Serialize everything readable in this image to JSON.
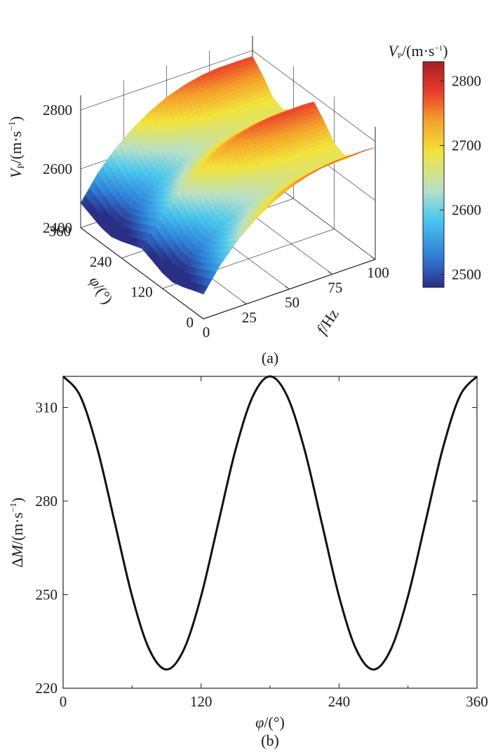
{
  "figure": {
    "panel_a_label": "(a)",
    "panel_b_label": "(b)"
  },
  "chart_data": [
    {
      "type": "surface",
      "panel": "(a)",
      "x_axis": {
        "label": "f/Hz",
        "ticks": [
          0,
          25,
          50,
          75,
          100
        ],
        "range": [
          0,
          100
        ]
      },
      "y_axis": {
        "label": "φ/(°)",
        "ticks": [
          0,
          120,
          240,
          360
        ],
        "range": [
          0,
          360
        ]
      },
      "z_axis": {
        "label": "VP/(m·s−1)",
        "ticks": [
          2400,
          2600,
          2800
        ],
        "range": [
          2400,
          2850
        ]
      },
      "colorbar": {
        "label": "VP/(m·s−1)",
        "ticks": [
          2500,
          2600,
          2700,
          2800
        ],
        "range": [
          2480,
          2830
        ],
        "colors": [
          "#2a2f86",
          "#2f7fd8",
          "#49c6ee",
          "#b7e0c9",
          "#f2e43a",
          "#f5a02a",
          "#e83a2a",
          "#a61f24"
        ]
      },
      "surface_grid": {
        "f": [
          0,
          10,
          20,
          30,
          40,
          50,
          60,
          70,
          80,
          90,
          100
        ],
        "phi": [
          0,
          30,
          60,
          90,
          120,
          150,
          180,
          210,
          240,
          270,
          300,
          330,
          360
        ],
        "vp": [
          [
            2484,
            2565,
            2627,
            2675,
            2713,
            2742,
            2762,
            2775,
            2781,
            2781,
            2780
          ],
          [
            2471,
            2542,
            2597,
            2640,
            2675,
            2702,
            2722,
            2735,
            2742,
            2744,
            2745
          ],
          [
            2457,
            2520,
            2569,
            2607,
            2637,
            2661,
            2678,
            2690,
            2697,
            2700,
            2702
          ],
          [
            2447,
            2505,
            2551,
            2587,
            2615,
            2637,
            2653,
            2664,
            2671,
            2674,
            2676
          ],
          [
            2453,
            2513,
            2561,
            2599,
            2628,
            2651,
            2668,
            2679,
            2686,
            2689,
            2691
          ],
          [
            2469,
            2539,
            2594,
            2637,
            2671,
            2698,
            2717,
            2730,
            2737,
            2740,
            2740
          ],
          [
            2484,
            2565,
            2627,
            2675,
            2713,
            2742,
            2762,
            2775,
            2781,
            2781,
            2780
          ],
          [
            2471,
            2542,
            2597,
            2640,
            2675,
            2702,
            2722,
            2735,
            2742,
            2744,
            2745
          ],
          [
            2457,
            2520,
            2569,
            2607,
            2637,
            2661,
            2678,
            2690,
            2697,
            2700,
            2702
          ],
          [
            2447,
            2505,
            2551,
            2587,
            2615,
            2637,
            2653,
            2664,
            2671,
            2674,
            2676
          ],
          [
            2453,
            2513,
            2561,
            2599,
            2628,
            2651,
            2668,
            2679,
            2686,
            2689,
            2691
          ],
          [
            2469,
            2539,
            2594,
            2637,
            2671,
            2698,
            2717,
            2730,
            2737,
            2740,
            2740
          ],
          [
            2484,
            2565,
            2627,
            2675,
            2713,
            2742,
            2762,
            2775,
            2781,
            2781,
            2780
          ]
        ]
      }
    },
    {
      "type": "line",
      "panel": "(b)",
      "xlabel": "φ/(°)",
      "ylabel": "ΔM/(m·s−1)",
      "xlim": [
        0,
        360
      ],
      "ylim": [
        220,
        320
      ],
      "xticks": [
        0,
        120,
        240,
        360
      ],
      "yticks": [
        220,
        250,
        280,
        310
      ],
      "series": [
        {
          "x": [
            0,
            15,
            30,
            45,
            60,
            75,
            90,
            105,
            120,
            135,
            150,
            165,
            180,
            195,
            210,
            225,
            240,
            255,
            270,
            285,
            300,
            315,
            330,
            345,
            360
          ],
          "y": [
            320,
            313.6,
            296.5,
            273.0,
            249.5,
            232.4,
            226,
            232.4,
            249.5,
            273.0,
            296.5,
            313.6,
            320,
            313.6,
            296.5,
            273.0,
            249.5,
            232.4,
            226,
            232.4,
            249.5,
            273.0,
            296.5,
            313.6,
            320
          ],
          "color": "#111111"
        }
      ]
    }
  ]
}
